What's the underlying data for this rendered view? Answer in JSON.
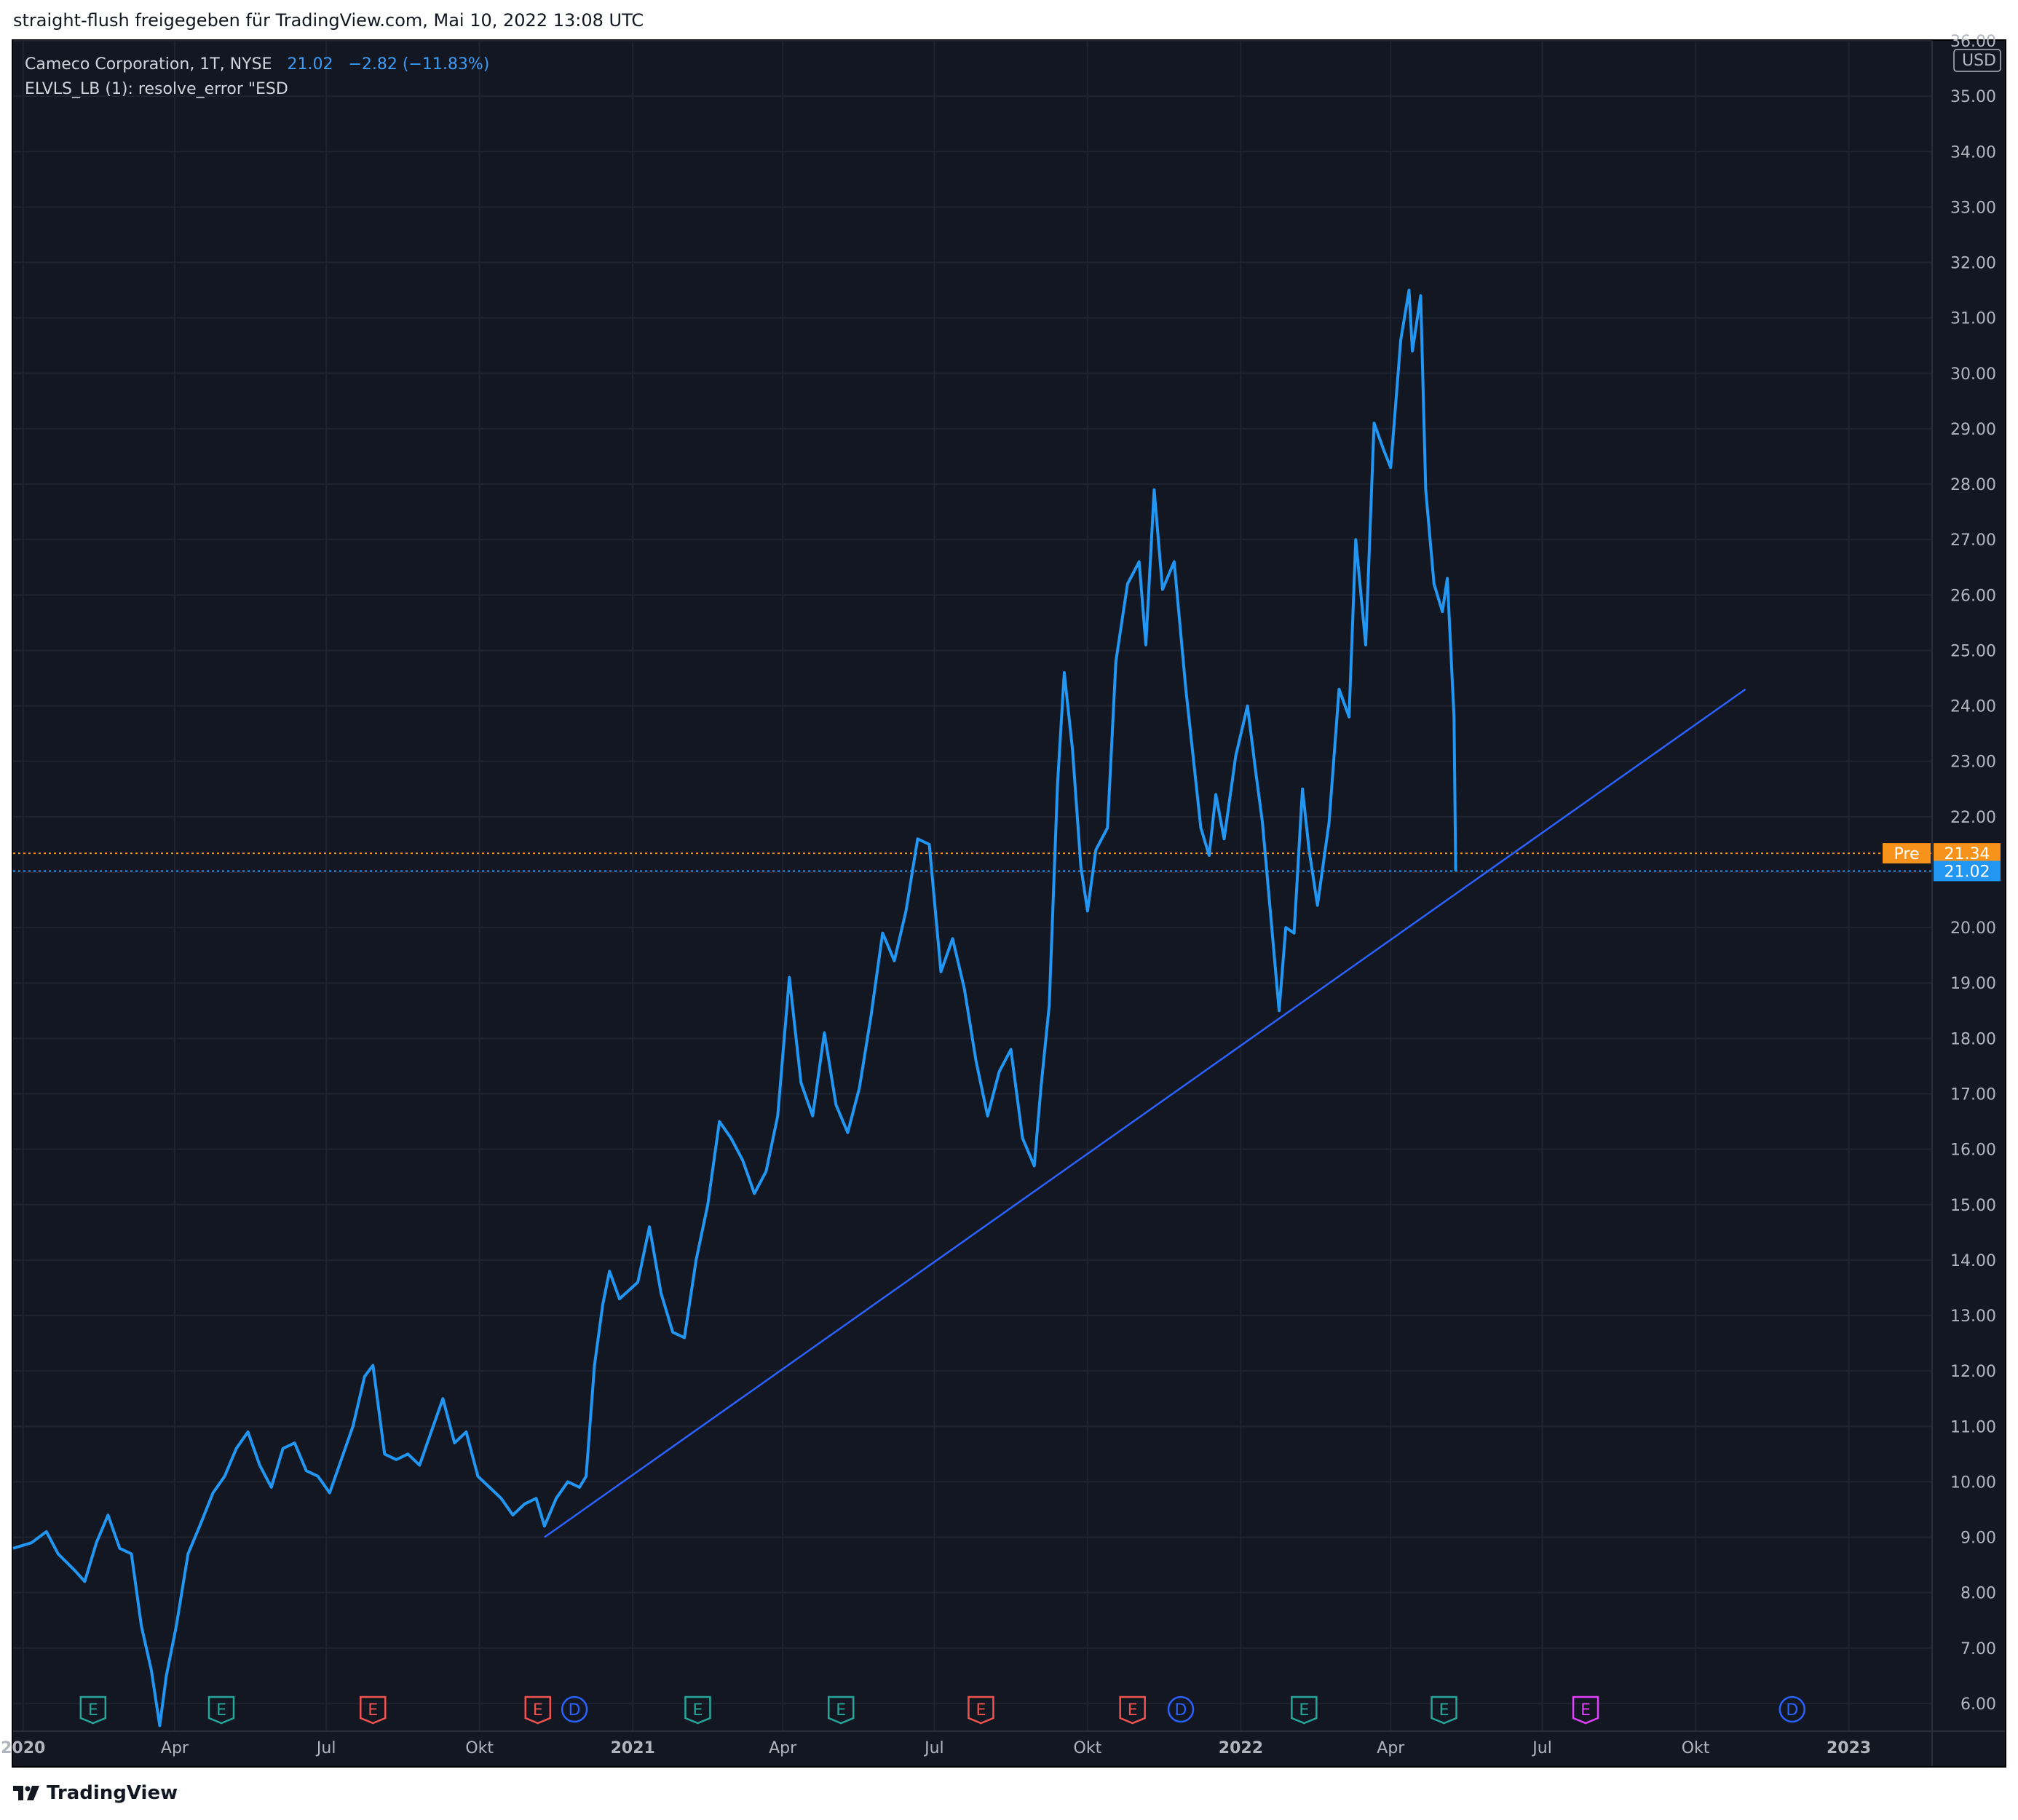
{
  "header": {
    "caption": "straight-flush freigegeben für TradingView.com, Mai 10, 2022 13:08 UTC"
  },
  "legend": {
    "symbol": "Cameco Corporation, 1T, NYSE",
    "last": "21.02",
    "change": "−2.82 (−11.83%)",
    "indicator": "ELVLS_LB (1): resolve_error \"ESD"
  },
  "footer": {
    "brand": "TradingView"
  },
  "colors": {
    "background": "#131722",
    "price_line": "#2196f3",
    "trend_line": "#2962ff",
    "pre_badge": "#f7931a",
    "last_badge": "#2196f3",
    "grid": "#1f2330"
  },
  "chart_data": {
    "type": "line",
    "currency": "USD",
    "ylim": [
      5.5,
      36.0
    ],
    "y_ticks": [
      6,
      7,
      8,
      9,
      10,
      11,
      12,
      13,
      14,
      15,
      16,
      17,
      18,
      19,
      20,
      21,
      22,
      23,
      24,
      25,
      26,
      27,
      28,
      29,
      30,
      31,
      32,
      33,
      34,
      35,
      36
    ],
    "x_range": [
      "2019-12-26",
      "2023-02-20"
    ],
    "x_ticks": [
      {
        "date": "2020-01-01",
        "label": "2020",
        "bold": true
      },
      {
        "date": "2020-04-01",
        "label": "Apr"
      },
      {
        "date": "2020-07-01",
        "label": "Jul"
      },
      {
        "date": "2020-10-01",
        "label": "Okt"
      },
      {
        "date": "2021-01-01",
        "label": "2021",
        "bold": true
      },
      {
        "date": "2021-04-01",
        "label": "Apr"
      },
      {
        "date": "2021-07-01",
        "label": "Jul"
      },
      {
        "date": "2021-10-01",
        "label": "Okt"
      },
      {
        "date": "2022-01-01",
        "label": "2022",
        "bold": true
      },
      {
        "date": "2022-04-01",
        "label": "Apr"
      },
      {
        "date": "2022-07-01",
        "label": "Jul"
      },
      {
        "date": "2022-10-01",
        "label": "Okt"
      },
      {
        "date": "2023-01-01",
        "label": "2023",
        "bold": true
      }
    ],
    "series": [
      {
        "name": "",
        "points": [
          [
            "2019-12-26",
            8.8
          ],
          [
            "2020-01-06",
            8.9
          ],
          [
            "2020-01-15",
            9.1
          ],
          [
            "2020-01-22",
            8.7
          ],
          [
            "2020-02-01",
            8.4
          ],
          [
            "2020-02-07",
            8.2
          ],
          [
            "2020-02-14",
            8.9
          ],
          [
            "2020-02-21",
            9.4
          ],
          [
            "2020-02-28",
            8.8
          ],
          [
            "2020-03-06",
            8.7
          ],
          [
            "2020-03-12",
            7.4
          ],
          [
            "2020-03-18",
            6.6
          ],
          [
            "2020-03-23",
            5.6
          ],
          [
            "2020-03-27",
            6.5
          ],
          [
            "2020-04-02",
            7.4
          ],
          [
            "2020-04-09",
            8.7
          ],
          [
            "2020-04-16",
            9.2
          ],
          [
            "2020-04-24",
            9.8
          ],
          [
            "2020-05-01",
            10.1
          ],
          [
            "2020-05-08",
            10.6
          ],
          [
            "2020-05-15",
            10.9
          ],
          [
            "2020-05-22",
            10.3
          ],
          [
            "2020-05-29",
            9.9
          ],
          [
            "2020-06-05",
            10.6
          ],
          [
            "2020-06-12",
            10.7
          ],
          [
            "2020-06-19",
            10.2
          ],
          [
            "2020-06-26",
            10.1
          ],
          [
            "2020-07-03",
            9.8
          ],
          [
            "2020-07-10",
            10.4
          ],
          [
            "2020-07-17",
            11.0
          ],
          [
            "2020-07-24",
            11.9
          ],
          [
            "2020-07-29",
            12.1
          ],
          [
            "2020-08-05",
            10.5
          ],
          [
            "2020-08-12",
            10.4
          ],
          [
            "2020-08-19",
            10.5
          ],
          [
            "2020-08-26",
            10.3
          ],
          [
            "2020-09-02",
            10.9
          ],
          [
            "2020-09-09",
            11.5
          ],
          [
            "2020-09-16",
            10.7
          ],
          [
            "2020-09-23",
            10.9
          ],
          [
            "2020-09-30",
            10.1
          ],
          [
            "2020-10-07",
            9.9
          ],
          [
            "2020-10-14",
            9.7
          ],
          [
            "2020-10-21",
            9.4
          ],
          [
            "2020-10-28",
            9.6
          ],
          [
            "2020-11-04",
            9.7
          ],
          [
            "2020-11-09",
            9.2
          ],
          [
            "2020-11-16",
            9.7
          ],
          [
            "2020-11-23",
            10.0
          ],
          [
            "2020-11-30",
            9.9
          ],
          [
            "2020-12-04",
            10.1
          ],
          [
            "2020-12-09",
            12.1
          ],
          [
            "2020-12-14",
            13.2
          ],
          [
            "2020-12-18",
            13.8
          ],
          [
            "2020-12-24",
            13.3
          ],
          [
            "2021-01-04",
            13.6
          ],
          [
            "2021-01-11",
            14.6
          ],
          [
            "2021-01-18",
            13.4
          ],
          [
            "2021-01-25",
            12.7
          ],
          [
            "2021-02-01",
            12.6
          ],
          [
            "2021-02-08",
            14.0
          ],
          [
            "2021-02-15",
            15.0
          ],
          [
            "2021-02-22",
            16.5
          ],
          [
            "2021-03-01",
            16.2
          ],
          [
            "2021-03-08",
            15.8
          ],
          [
            "2021-03-15",
            15.2
          ],
          [
            "2021-03-22",
            15.6
          ],
          [
            "2021-03-29",
            16.6
          ],
          [
            "2021-04-05",
            19.1
          ],
          [
            "2021-04-12",
            17.2
          ],
          [
            "2021-04-19",
            16.6
          ],
          [
            "2021-04-26",
            18.1
          ],
          [
            "2021-05-03",
            16.8
          ],
          [
            "2021-05-10",
            16.3
          ],
          [
            "2021-05-17",
            17.1
          ],
          [
            "2021-05-24",
            18.4
          ],
          [
            "2021-05-31",
            19.9
          ],
          [
            "2021-06-07",
            19.4
          ],
          [
            "2021-06-14",
            20.3
          ],
          [
            "2021-06-21",
            21.6
          ],
          [
            "2021-06-28",
            21.5
          ],
          [
            "2021-07-05",
            19.2
          ],
          [
            "2021-07-12",
            19.8
          ],
          [
            "2021-07-19",
            18.9
          ],
          [
            "2021-07-26",
            17.6
          ],
          [
            "2021-08-02",
            16.6
          ],
          [
            "2021-08-09",
            17.4
          ],
          [
            "2021-08-16",
            17.8
          ],
          [
            "2021-08-23",
            16.2
          ],
          [
            "2021-08-30",
            15.7
          ],
          [
            "2021-09-03",
            17.1
          ],
          [
            "2021-09-08",
            18.6
          ],
          [
            "2021-09-13",
            22.6
          ],
          [
            "2021-09-17",
            24.6
          ],
          [
            "2021-09-22",
            23.2
          ],
          [
            "2021-09-27",
            21.1
          ],
          [
            "2021-10-01",
            20.3
          ],
          [
            "2021-10-06",
            21.4
          ],
          [
            "2021-10-13",
            21.8
          ],
          [
            "2021-10-18",
            24.8
          ],
          [
            "2021-10-25",
            26.2
          ],
          [
            "2021-11-01",
            26.6
          ],
          [
            "2021-11-05",
            25.1
          ],
          [
            "2021-11-10",
            27.9
          ],
          [
            "2021-11-15",
            26.1
          ],
          [
            "2021-11-22",
            26.6
          ],
          [
            "2021-11-29",
            24.3
          ],
          [
            "2021-12-03",
            23.2
          ],
          [
            "2021-12-08",
            21.8
          ],
          [
            "2021-12-13",
            21.3
          ],
          [
            "2021-12-17",
            22.4
          ],
          [
            "2021-12-22",
            21.6
          ],
          [
            "2021-12-29",
            23.1
          ],
          [
            "2022-01-05",
            24.0
          ],
          [
            "2022-01-10",
            22.8
          ],
          [
            "2022-01-14",
            21.9
          ],
          [
            "2022-01-19",
            20.2
          ],
          [
            "2022-01-24",
            18.5
          ],
          [
            "2022-01-28",
            20.0
          ],
          [
            "2022-02-02",
            19.9
          ],
          [
            "2022-02-07",
            22.5
          ],
          [
            "2022-02-11",
            21.4
          ],
          [
            "2022-02-16",
            20.4
          ],
          [
            "2022-02-23",
            21.9
          ],
          [
            "2022-03-01",
            24.3
          ],
          [
            "2022-03-07",
            23.8
          ],
          [
            "2022-03-11",
            27.0
          ],
          [
            "2022-03-17",
            25.1
          ],
          [
            "2022-03-22",
            29.1
          ],
          [
            "2022-03-28",
            28.6
          ],
          [
            "2022-04-01",
            28.3
          ],
          [
            "2022-04-07",
            30.6
          ],
          [
            "2022-04-12",
            31.5
          ],
          [
            "2022-04-14",
            30.4
          ],
          [
            "2022-04-19",
            31.4
          ],
          [
            "2022-04-22",
            27.9
          ],
          [
            "2022-04-27",
            26.2
          ],
          [
            "2022-05-02",
            25.7
          ],
          [
            "2022-05-05",
            26.3
          ],
          [
            "2022-05-09",
            23.8
          ],
          [
            "2022-05-10",
            21.02
          ]
        ]
      }
    ],
    "trendline": {
      "from": [
        "2020-11-09",
        9.0
      ],
      "to": [
        "2022-10-31",
        24.3
      ]
    },
    "price_lines": [
      {
        "label": "Pre",
        "value": 21.34,
        "badge": "21.34",
        "color": "#f7931a"
      },
      {
        "label": "",
        "value": 21.02,
        "badge": "21.02",
        "color": "#2196f3"
      }
    ],
    "events": [
      {
        "date": "2020-02-12",
        "type": "E",
        "color": "#26a69a"
      },
      {
        "date": "2020-04-29",
        "type": "E",
        "color": "#26a69a"
      },
      {
        "date": "2020-07-29",
        "type": "E",
        "color": "#ef5350"
      },
      {
        "date": "2020-11-05",
        "type": "E",
        "color": "#ef5350"
      },
      {
        "date": "2020-11-27",
        "type": "D",
        "color": "#2962ff"
      },
      {
        "date": "2021-02-09",
        "type": "E",
        "color": "#26a69a"
      },
      {
        "date": "2021-05-06",
        "type": "E",
        "color": "#26a69a"
      },
      {
        "date": "2021-07-29",
        "type": "E",
        "color": "#ef5350"
      },
      {
        "date": "2021-10-28",
        "type": "E",
        "color": "#ef5350"
      },
      {
        "date": "2021-11-26",
        "type": "D",
        "color": "#2962ff"
      },
      {
        "date": "2022-02-08",
        "type": "E",
        "color": "#26a69a"
      },
      {
        "date": "2022-05-03",
        "type": "E",
        "color": "#26a69a"
      },
      {
        "date": "2022-07-27",
        "type": "E",
        "color": "#e040fb"
      },
      {
        "date": "2022-11-28",
        "type": "D",
        "color": "#2962ff"
      }
    ]
  }
}
